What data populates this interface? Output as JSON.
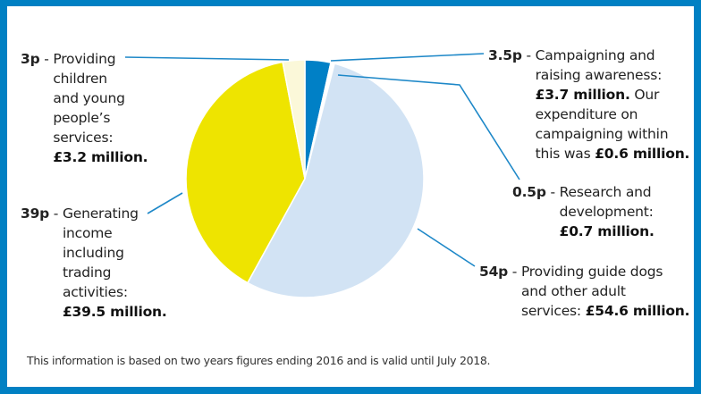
{
  "colors": {
    "border": "#0080C3",
    "leader": "#1E88C8",
    "campaigning": "#0080C6",
    "research": "#FFFFFF",
    "guide_dogs": "#D2E3F4",
    "income": "#EEE400",
    "children": "#FBF8D9"
  },
  "chart_data": {
    "type": "pie",
    "title": "",
    "unit": "pence per pound",
    "start": "top",
    "direction": "clockwise",
    "slices": [
      {
        "id": "campaigning",
        "value": 3.5,
        "amount": "£3.7 million"
      },
      {
        "id": "research",
        "value": 0.5,
        "amount": "£0.7 million"
      },
      {
        "id": "guide_dogs",
        "value": 54,
        "amount": "£54.6 million"
      },
      {
        "id": "income",
        "value": 39,
        "amount": "£39.5 million"
      },
      {
        "id": "children",
        "value": 3,
        "amount": "£3.2 million"
      }
    ]
  },
  "labels": {
    "children": {
      "key": "3p",
      "sep": " - ",
      "lines": [
        "Providing",
        "children",
        "and young",
        "people’s",
        "services:"
      ],
      "bold_line": "£3.2 million."
    },
    "income": {
      "key": "39p",
      "sep": " - ",
      "lines": [
        "Generating",
        "income",
        "including",
        "trading",
        "activities:"
      ],
      "bold_line": "£39.5 million."
    },
    "campaigning": {
      "key": "3.5p",
      "sep": " - ",
      "line1": "Campaigning and",
      "line2": "raising awareness:",
      "line3_bold": "£3.7 million.",
      "line3_rest": " Our",
      "line4": "expenditure on",
      "line5": "campaigning within",
      "line6_pre": "this was ",
      "line6_bold": "£0.6 million."
    },
    "research": {
      "key": "0.5p",
      "sep": " - ",
      "line1": "Research and",
      "line2": "development:",
      "bold_line": "£0.7 million."
    },
    "guide_dogs": {
      "key": "54p",
      "sep": " - ",
      "line1": "Providing guide dogs",
      "line2": "and other adult",
      "line3_pre": "services: ",
      "line3_bold": "£54.6 million."
    }
  },
  "footnote": "This information is based on two years figures ending 2016 and is valid until July 2018."
}
